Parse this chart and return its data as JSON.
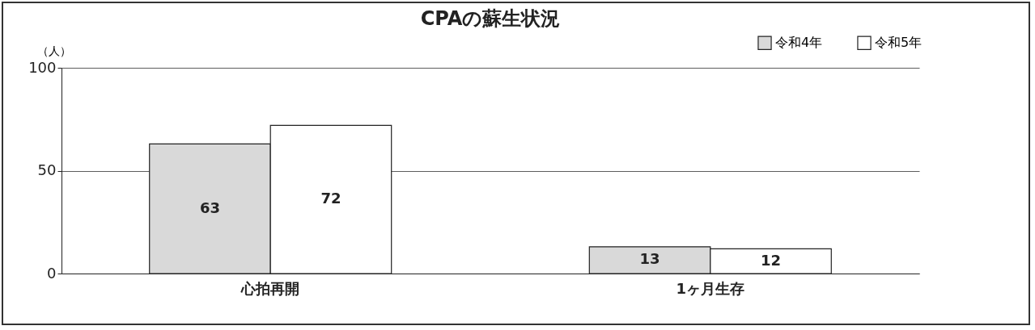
{
  "chart_data": {
    "type": "bar",
    "title": "CPAの蘇生状況",
    "ylabel": "（人）",
    "categories": [
      "心拍再開",
      "1ヶ月生存"
    ],
    "series": [
      {
        "name": "令和4年",
        "color": "#d9d9d9",
        "values": [
          63,
          13
        ]
      },
      {
        "name": "令和5年",
        "color": "#ffffff",
        "values": [
          72,
          12
        ]
      }
    ],
    "ylim": [
      0,
      100
    ],
    "yticks": [
      0,
      50,
      100
    ],
    "grid": "y",
    "legend": "top right",
    "data_labels": true
  }
}
